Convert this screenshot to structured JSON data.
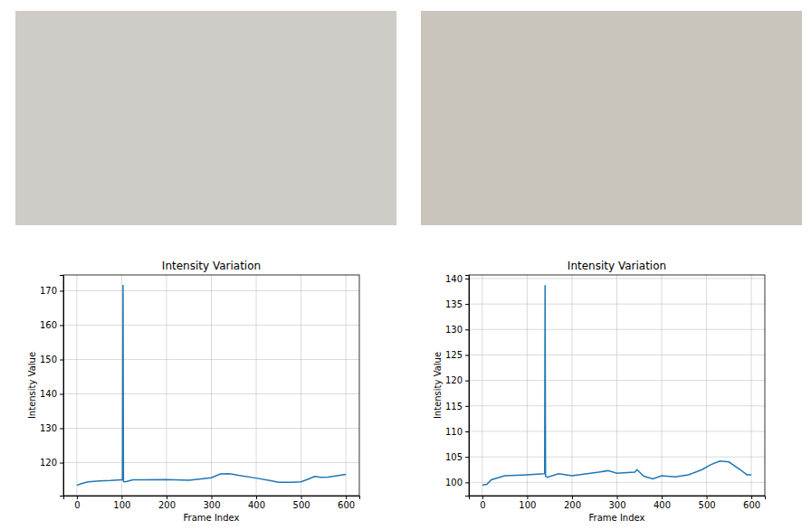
{
  "chart_data": [
    {
      "type": "line",
      "title": "Intensity Variation",
      "x_label": "Frame Index",
      "y_label": "Intensity Value",
      "x": [
        0,
        10,
        25,
        50,
        75,
        100,
        102,
        103,
        104,
        106,
        110,
        125,
        150,
        200,
        250,
        300,
        320,
        340,
        360,
        400,
        430,
        450,
        480,
        500,
        520,
        530,
        545,
        560,
        580,
        600
      ],
      "series": [
        {
          "color": "#1f77b4",
          "values": [
            113.4,
            113.9,
            114.4,
            114.7,
            114.8,
            115.0,
            115.0,
            171.7,
            114.6,
            114.4,
            114.5,
            115.0,
            115.0,
            115.1,
            114.9,
            115.6,
            116.7,
            116.8,
            116.3,
            115.5,
            114.8,
            114.3,
            114.3,
            114.4,
            115.4,
            116.0,
            115.7,
            115.8,
            116.2,
            116.6
          ]
        }
      ],
      "xlim": [
        -30,
        630
      ],
      "ylim": [
        110.4,
        174.6
      ],
      "xticks": [
        0,
        100,
        200,
        300,
        400,
        500,
        600
      ],
      "yticks": [
        120,
        130,
        140,
        150,
        160,
        170
      ],
      "grid": true
    },
    {
      "type": "line",
      "title": "Intensity Variation",
      "x_label": "Frame Index",
      "y_label": "Intensity Value",
      "x": [
        0,
        10,
        20,
        50,
        100,
        138,
        139,
        140,
        141,
        145,
        170,
        200,
        260,
        280,
        300,
        340,
        345,
        360,
        380,
        400,
        430,
        460,
        490,
        510,
        530,
        550,
        575,
        590,
        600
      ],
      "series": [
        {
          "color": "#1f77b4",
          "values": [
            99.5,
            99.6,
            100.5,
            101.3,
            101.5,
            101.7,
            101.7,
            138.7,
            101.2,
            101.0,
            101.7,
            101.3,
            102.0,
            102.3,
            101.8,
            102.0,
            102.5,
            101.2,
            100.7,
            101.3,
            101.1,
            101.5,
            102.5,
            103.5,
            104.2,
            104.0,
            102.5,
            101.5,
            101.5
          ]
        }
      ],
      "xlim": [
        -30,
        630
      ],
      "ylim": [
        97.4,
        140.7
      ],
      "xticks": [
        0,
        100,
        200,
        300,
        400,
        500,
        600
      ],
      "yticks": [
        100,
        105,
        110,
        115,
        120,
        125,
        130,
        135,
        140
      ],
      "grid": true
    }
  ]
}
